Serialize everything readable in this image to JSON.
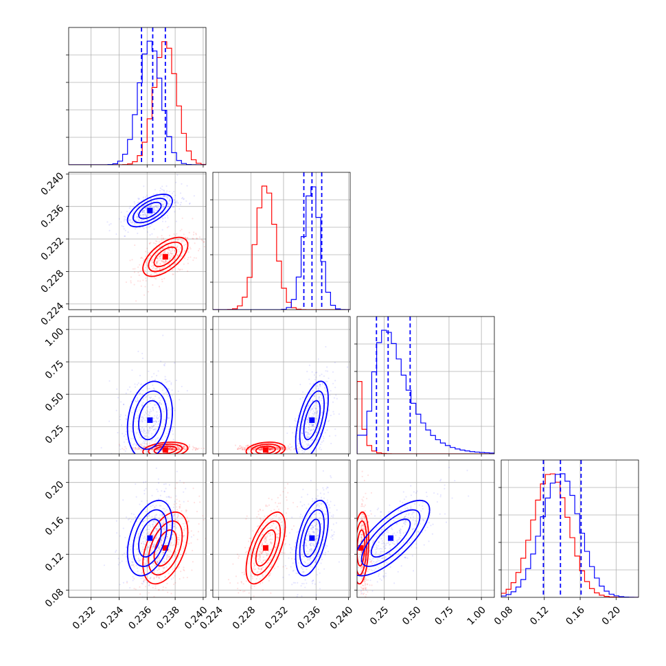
{
  "chart_data": {
    "type": "corner",
    "grid": true,
    "colors": {
      "series_a": "#ff0000",
      "series_b": "#0000ff"
    },
    "params": [
      {
        "ticks": [
          0.232,
          0.234,
          0.236,
          0.238,
          0.24
        ],
        "range": [
          0.2304,
          0.2402
        ]
      },
      {
        "ticks": [
          0.224,
          0.228,
          0.232,
          0.236,
          0.24
        ],
        "range": [
          0.2233,
          0.2402
        ]
      },
      {
        "ticks": [
          0.25,
          0.5,
          0.75,
          1.0
        ],
        "range": [
          0.04,
          1.1
        ]
      },
      {
        "ticks": [
          0.08,
          0.12,
          0.16,
          0.2
        ],
        "range": [
          0.072,
          0.225
        ]
      }
    ],
    "tick_labels": [
      [
        "0.232",
        "0.234",
        "0.236",
        "0.238",
        "0.240"
      ],
      [
        "0.224",
        "0.228",
        "0.232",
        "0.236",
        "0.240"
      ],
      [
        "0.25",
        "0.50",
        "0.75",
        "1.00"
      ],
      [
        "0.08",
        "0.12",
        "0.16",
        "0.20"
      ]
    ],
    "series": [
      {
        "color": "#ff0000",
        "means": [
          0.2373,
          0.2298,
          0.07,
          0.127
        ],
        "sds": [
          0.0008,
          0.0012,
          0.03,
          0.02
        ],
        "corr": [
          [
            1,
            0.6,
            0.25,
            0.45
          ],
          [
            0.6,
            1,
            0.2,
            0.6
          ],
          [
            0.25,
            0.2,
            1,
            0.2
          ],
          [
            0.45,
            0.6,
            0.2,
            1
          ]
        ]
      },
      {
        "color": "#0000ff",
        "means": [
          0.2362,
          0.2355,
          0.3,
          0.138
        ],
        "sds": [
          0.0008,
          0.001,
          0.15,
          0.021
        ],
        "corr": [
          [
            1,
            0.6,
            0.2,
            0.4
          ],
          [
            0.6,
            1,
            0.55,
            0.5
          ],
          [
            0.2,
            0.55,
            1,
            0.75
          ],
          [
            0.4,
            0.5,
            0.75,
            1
          ]
        ]
      }
    ],
    "quantiles_b": [
      [
        0.2356,
        0.2364,
        0.2373
      ],
      [
        0.2345,
        0.2355,
        0.2367
      ],
      [
        0.19,
        0.28,
        0.45
      ],
      [
        0.119,
        0.138,
        0.161
      ]
    ]
  }
}
